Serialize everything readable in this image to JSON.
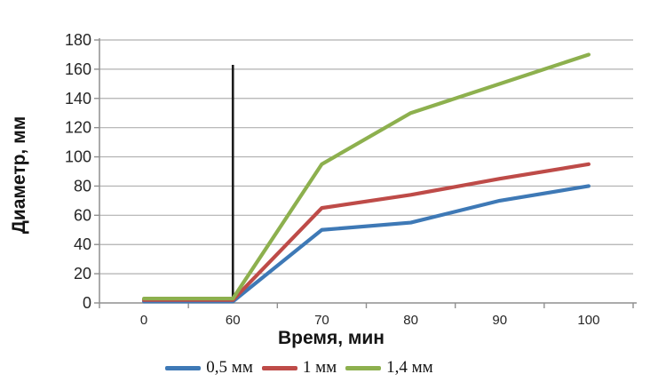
{
  "chart_data": {
    "type": "line",
    "title": "",
    "xlabel": "Время, мин",
    "ylabel": "Диаметр, мм",
    "categories": [
      "0",
      "60",
      "70",
      "80",
      "90",
      "100"
    ],
    "series": [
      {
        "name": "0,5 мм",
        "color": "#3E79B6",
        "values": [
          1,
          1,
          50,
          55,
          70,
          80
        ]
      },
      {
        "name": "1 мм",
        "color": "#BE4B48",
        "values": [
          2,
          2,
          65,
          74,
          85,
          95
        ]
      },
      {
        "name": "1,4 мм",
        "color": "#8DB04E",
        "values": [
          3,
          3,
          95,
          130,
          150,
          170
        ]
      }
    ],
    "y_axis": {
      "min": 0,
      "max": 180,
      "tick_step": 20
    },
    "x_tick_labels": [
      "0",
      "60",
      "70",
      "80",
      "90",
      "100"
    ],
    "grid": true,
    "legend_position": "bottom",
    "annotation": {
      "type": "vertical-line",
      "at_x": "60",
      "from": 0,
      "to": 163,
      "color": "#1C1C1C"
    },
    "colors": {
      "gridline": "#B0B0B0",
      "axis": "#8F8F8F",
      "tick_text": "#262626",
      "background": "#FFFFFF"
    }
  }
}
